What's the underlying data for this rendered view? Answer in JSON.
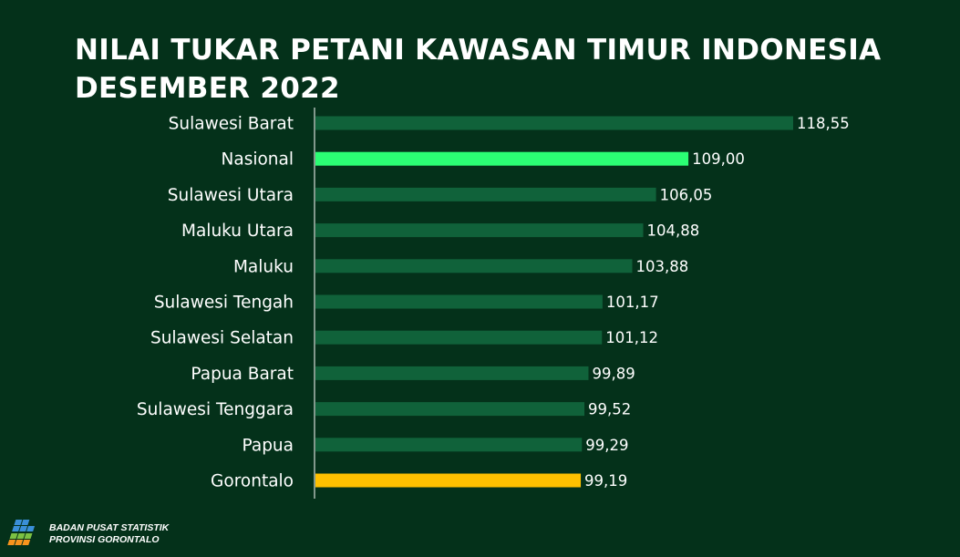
{
  "title": {
    "line1": "NILAI TUKAR PETANI KAWASAN TIMUR INDONESIA",
    "line2": "DESEMBER 2022"
  },
  "footer": {
    "org_line1": "BADAN PUSAT STATISTIK",
    "org_line2": "PROVINSI GORONTALO"
  },
  "colors": {
    "background": "#04311a",
    "bar_default": "#10623a",
    "bar_nasional": "#2bff74",
    "bar_gorontalo": "#ffc000",
    "axis": "#ffffff"
  },
  "chart_data": {
    "type": "bar",
    "orientation": "horizontal",
    "categories": [
      "Sulawesi Barat",
      "Nasional",
      "Sulawesi Utara",
      "Maluku Utara",
      "Maluku",
      "Sulawesi Tengah",
      "Sulawesi Selatan",
      "Papua Barat",
      "Sulawesi Tenggara",
      "Papua",
      "Gorontalo"
    ],
    "values": [
      118.55,
      109.0,
      106.05,
      104.88,
      103.88,
      101.17,
      101.12,
      99.89,
      99.52,
      99.29,
      99.19
    ],
    "value_labels": [
      "118,55",
      "109,00",
      "106,05",
      "104,88",
      "103,88",
      "101,17",
      "101,12",
      "99,89",
      "99,52",
      "99,29",
      "99,19"
    ],
    "highlight": {
      "Nasional": "#2bff74",
      "Gorontalo": "#ffc000"
    },
    "title": "NILAI TUKAR PETANI KAWASAN TIMUR INDONESIA DESEMBER 2022",
    "xlabel": "",
    "ylabel": "",
    "xlim": [
      75,
      121
    ],
    "grid": false,
    "legend": "none"
  }
}
